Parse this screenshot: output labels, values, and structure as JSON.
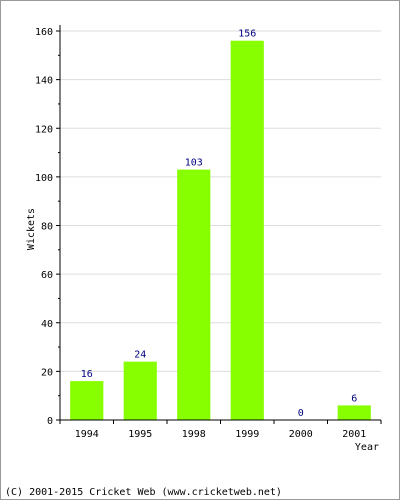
{
  "chart_data": {
    "type": "bar",
    "categories": [
      "1994",
      "1995",
      "1998",
      "1999",
      "2000",
      "2001"
    ],
    "values": [
      16,
      24,
      103,
      156,
      0,
      6
    ],
    "data_labels": [
      "16",
      "24",
      "103",
      "156",
      "0",
      "6"
    ],
    "title": "",
    "xlabel": "Year",
    "ylabel": "Wickets",
    "ylim": [
      0,
      160
    ],
    "yticks": [
      0,
      20,
      40,
      60,
      80,
      100,
      120,
      140,
      160
    ],
    "grid": true,
    "bar_color": "#88ff00",
    "label_color": "#000080",
    "grid_color": "#dddddd"
  },
  "footer": {
    "copyright": "(C) 2001-2015 Cricket Web (www.cricketweb.net)"
  }
}
